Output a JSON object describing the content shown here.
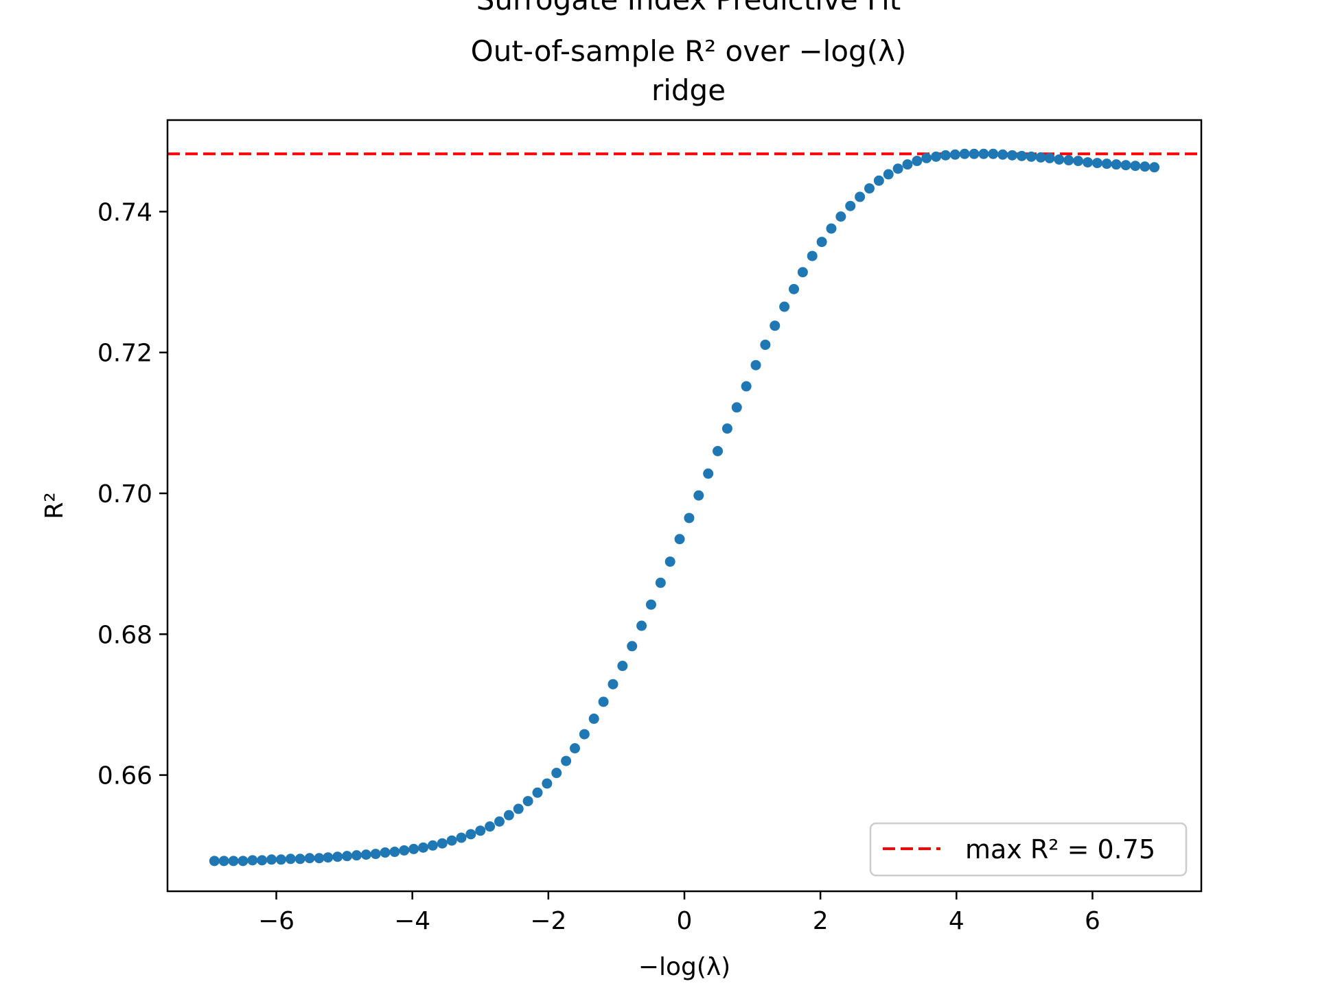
{
  "chart_data": {
    "type": "scatter",
    "title": "Surrogate Index Predictive Fit",
    "subtitle": "Out-of-sample R² over −log(λ)",
    "subtitle2": "ridge",
    "xlabel": "−log(λ)",
    "ylabel": "R²",
    "xlim": [
      -7.6,
      7.6
    ],
    "ylim": [
      0.6435,
      0.753
    ],
    "xticks": [
      -6,
      -4,
      -2,
      0,
      2,
      4,
      6
    ],
    "xtick_labels": [
      "−6",
      "−4",
      "−2",
      "0",
      "2",
      "4",
      "6"
    ],
    "yticks": [
      0.66,
      0.68,
      0.7,
      0.72,
      0.74
    ],
    "ytick_labels": [
      "0.66",
      "0.68",
      "0.70",
      "0.72",
      "0.74"
    ],
    "grid": false,
    "legend_position": "lower-right",
    "legend_label": "max R² = 0.75",
    "max_r2": 0.7482,
    "series": [
      {
        "color": "#1f77b4",
        "x": [
          -6.91,
          -6.77,
          -6.63,
          -6.49,
          -6.35,
          -6.21,
          -6.07,
          -5.93,
          -5.79,
          -5.65,
          -5.51,
          -5.37,
          -5.24,
          -5.1,
          -4.96,
          -4.82,
          -4.68,
          -4.54,
          -4.4,
          -4.26,
          -4.12,
          -3.98,
          -3.84,
          -3.7,
          -3.56,
          -3.42,
          -3.28,
          -3.14,
          -3.0,
          -2.86,
          -2.72,
          -2.58,
          -2.44,
          -2.3,
          -2.16,
          -2.02,
          -1.88,
          -1.74,
          -1.61,
          -1.47,
          -1.33,
          -1.19,
          -1.05,
          -0.91,
          -0.77,
          -0.63,
          -0.49,
          -0.35,
          -0.21,
          -0.07,
          0.07,
          0.21,
          0.35,
          0.49,
          0.63,
          0.77,
          0.91,
          1.05,
          1.19,
          1.33,
          1.47,
          1.61,
          1.74,
          1.88,
          2.02,
          2.16,
          2.3,
          2.44,
          2.58,
          2.72,
          2.86,
          3.0,
          3.14,
          3.28,
          3.42,
          3.56,
          3.7,
          3.84,
          3.98,
          4.12,
          4.26,
          4.4,
          4.54,
          4.68,
          4.82,
          4.96,
          5.1,
          5.24,
          5.37,
          5.51,
          5.65,
          5.79,
          5.93,
          6.07,
          6.21,
          6.35,
          6.49,
          6.63,
          6.77,
          6.91
        ],
        "y": [
          0.6478,
          0.6478,
          0.6478,
          0.6478,
          0.6479,
          0.6479,
          0.648,
          0.648,
          0.6481,
          0.6481,
          0.6482,
          0.6482,
          0.6483,
          0.6484,
          0.6485,
          0.6486,
          0.6487,
          0.6488,
          0.649,
          0.6491,
          0.6493,
          0.6495,
          0.6497,
          0.65,
          0.6503,
          0.6507,
          0.6511,
          0.6516,
          0.6521,
          0.6527,
          0.6534,
          0.6543,
          0.6552,
          0.6563,
          0.6575,
          0.6588,
          0.6603,
          0.662,
          0.6638,
          0.6658,
          0.668,
          0.6704,
          0.6729,
          0.6755,
          0.6783,
          0.6812,
          0.6842,
          0.6873,
          0.6903,
          0.6935,
          0.6965,
          0.6997,
          0.7028,
          0.706,
          0.7092,
          0.7122,
          0.7152,
          0.7182,
          0.7211,
          0.7238,
          0.7265,
          0.729,
          0.7314,
          0.7337,
          0.7357,
          0.7376,
          0.7393,
          0.7408,
          0.7421,
          0.7433,
          0.7444,
          0.7453,
          0.7461,
          0.7467,
          0.7472,
          0.7476,
          0.7478,
          0.748,
          0.7481,
          0.7482,
          0.7482,
          0.7482,
          0.7482,
          0.7481,
          0.748,
          0.7479,
          0.7478,
          0.7477,
          0.7476,
          0.7474,
          0.7473,
          0.7472,
          0.747,
          0.7469,
          0.7468,
          0.7467,
          0.7466,
          0.7465,
          0.7464,
          0.7463
        ]
      }
    ],
    "colors": {
      "points": "#1f77b4",
      "max_line": "#ff0000",
      "axes": "#000000"
    }
  }
}
